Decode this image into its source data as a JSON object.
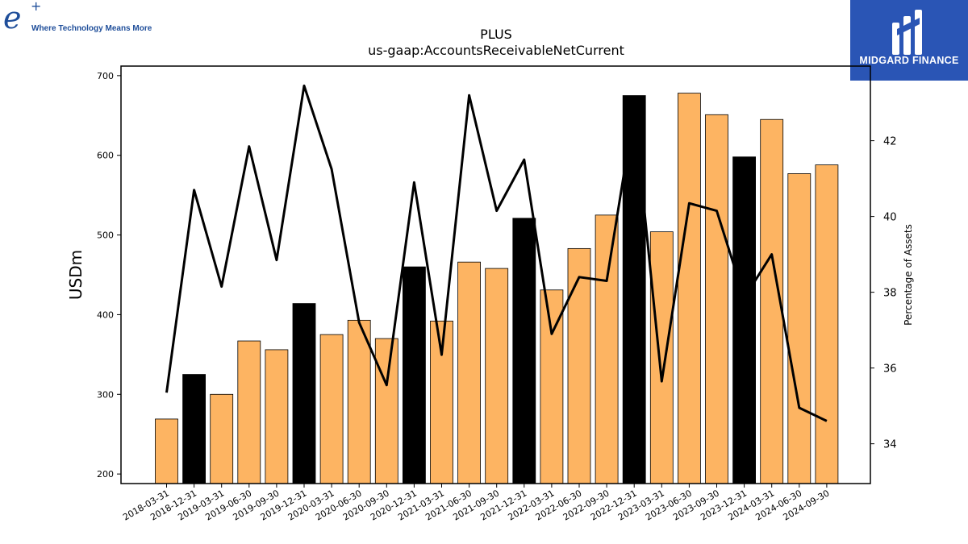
{
  "logos": {
    "left_mark": "e",
    "left_plus": "+",
    "left_tagline": "Where Technology Means More",
    "right_name": "MIDGARD FINANCE"
  },
  "colors": {
    "bar_quarter": "#fdb462",
    "bar_year_end": "#000000",
    "line": "#000000"
  },
  "chart_data": {
    "type": "bar",
    "title": "PLUS",
    "subtitle": "us-gaap:AccountsReceivableNetCurrent",
    "ylabel": "USDm",
    "y2label": "Percentage of Assets",
    "ylim": [
      188,
      712
    ],
    "y2lim": [
      32.95,
      43.97
    ],
    "yticks": [
      200,
      300,
      400,
      500,
      600,
      700
    ],
    "y2ticks": [
      34,
      36,
      38,
      40,
      42
    ],
    "categories": [
      "2018-03-31",
      "2018-12-31",
      "2019-03-31",
      "2019-06-30",
      "2019-09-30",
      "2019-12-31",
      "2020-03-31",
      "2020-06-30",
      "2020-09-30",
      "2020-12-31",
      "2021-03-31",
      "2021-06-30",
      "2021-09-30",
      "2021-12-31",
      "2022-03-31",
      "2022-06-30",
      "2022-09-30",
      "2022-12-31",
      "2023-03-31",
      "2023-06-30",
      "2023-09-30",
      "2023-12-31",
      "2024-03-31",
      "2024-06-30",
      "2024-09-30"
    ],
    "series": [
      {
        "values": [
          269,
          325,
          300,
          367,
          356,
          414,
          375,
          393,
          370,
          460,
          392,
          466,
          458,
          521,
          431,
          483,
          525,
          675,
          504,
          678,
          651,
          598,
          645,
          577,
          588
        ],
        "year_end": [
          false,
          true,
          false,
          false,
          false,
          true,
          false,
          false,
          false,
          true,
          false,
          false,
          false,
          true,
          false,
          false,
          false,
          true,
          false,
          false,
          false,
          true,
          false,
          false,
          false
        ],
        "axis": "left"
      },
      {
        "values": [
          35.35,
          40.7,
          38.15,
          41.85,
          38.85,
          43.45,
          41.25,
          37.2,
          35.55,
          40.9,
          36.35,
          43.2,
          40.15,
          41.5,
          36.9,
          38.4,
          38.3,
          42.8,
          35.65,
          40.35,
          40.15,
          37.85,
          39.0,
          34.95,
          34.6
        ],
        "axis": "right"
      }
    ],
    "grid": false,
    "legend": "none"
  }
}
